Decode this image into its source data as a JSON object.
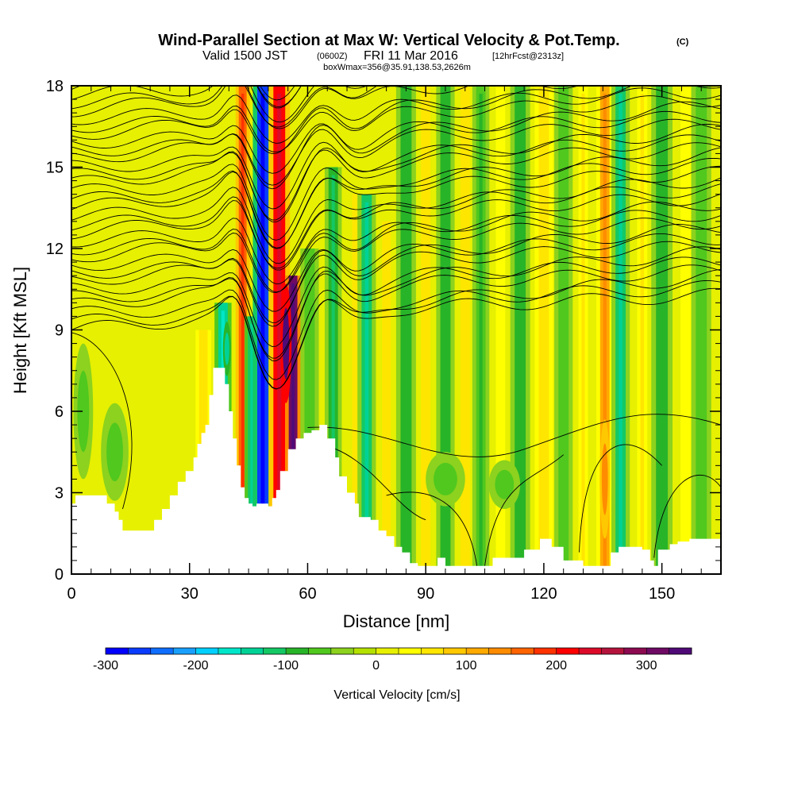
{
  "header": {
    "title": "Wind-Parallel Section at Max W: Vertical Velocity & Pot.Temp.",
    "title_mark": "(C)",
    "valid_main": "Valid 1500 JST",
    "valid_utc": "(0600Z)",
    "valid_date": "FRI 11 Mar 2016",
    "valid_fcst": "[12hrFcst@2313z]",
    "box_info": "boxWmax=356@35.91,138.53,2626m"
  },
  "chart_data": {
    "type": "heatmap",
    "xlabel": "Distance [nm]",
    "ylabel": "Height [Kft MSL]",
    "xlim": [
      0,
      165
    ],
    "ylim": [
      0,
      18
    ],
    "x_ticks": [
      "0",
      "30",
      "60",
      "90",
      "120",
      "150"
    ],
    "y_ticks": [
      "0",
      "3",
      "6",
      "9",
      "12",
      "15",
      "18"
    ],
    "colorbar": {
      "label": "Vertical Velocity [cm/s]",
      "range": [
        -300,
        350
      ],
      "step": 25,
      "tick_labels": [
        "-300",
        "-200",
        "-100",
        "0",
        "100",
        "200",
        "300"
      ],
      "tick_values": [
        -300,
        -200,
        -100,
        0,
        100,
        200,
        300
      ],
      "colors": [
        "#0000ff",
        "#0a3cff",
        "#0f6eff",
        "#19a0ff",
        "#00d0ff",
        "#00e6c8",
        "#00d296",
        "#14c864",
        "#28b428",
        "#50c81e",
        "#8cd21e",
        "#b4e100",
        "#e6f000",
        "#ffff00",
        "#ffe600",
        "#ffc800",
        "#ffaa00",
        "#ff8c00",
        "#ff6400",
        "#ff3200",
        "#ff0000",
        "#dc0a28",
        "#b4143c",
        "#8c0a50",
        "#6e0a64",
        "#500a78"
      ]
    },
    "terrain_kft": [
      [
        0,
        2.6
      ],
      [
        1,
        2.9
      ],
      [
        7,
        2.9
      ],
      [
        9,
        2.6
      ],
      [
        11,
        2.3
      ],
      [
        12,
        2.0
      ],
      [
        13,
        1.6
      ],
      [
        19,
        1.6
      ],
      [
        21,
        2.0
      ],
      [
        23,
        2.4
      ],
      [
        25,
        2.9
      ],
      [
        27,
        3.4
      ],
      [
        29,
        3.8
      ],
      [
        31,
        4.3
      ],
      [
        32,
        4.8
      ],
      [
        33,
        5.2
      ],
      [
        34,
        5.5
      ],
      [
        35,
        6.6
      ],
      [
        36,
        7.6
      ],
      [
        38,
        7.6
      ],
      [
        39,
        7.0
      ],
      [
        40,
        6.0
      ],
      [
        41,
        5.0
      ],
      [
        42,
        4.0
      ],
      [
        43,
        3.2
      ],
      [
        44,
        2.8
      ],
      [
        45,
        2.6
      ],
      [
        46,
        2.5
      ],
      [
        47,
        2.6
      ],
      [
        49,
        2.6
      ],
      [
        50,
        2.5
      ],
      [
        51,
        2.8
      ],
      [
        52,
        3.1
      ],
      [
        53,
        3.8
      ],
      [
        55,
        4.6
      ],
      [
        57,
        5.0
      ],
      [
        59,
        5.2
      ],
      [
        61,
        5.3
      ],
      [
        63,
        5.5
      ],
      [
        65,
        5.0
      ],
      [
        67,
        4.3
      ],
      [
        68,
        3.6
      ],
      [
        70,
        3.0
      ],
      [
        72,
        2.6
      ],
      [
        73,
        2.1
      ],
      [
        76,
        2.0
      ],
      [
        78,
        1.6
      ],
      [
        80,
        1.4
      ],
      [
        82,
        1.0
      ],
      [
        84,
        0.8
      ],
      [
        86,
        0.4
      ],
      [
        88,
        0.3
      ],
      [
        91,
        0.3
      ],
      [
        93,
        0.6
      ],
      [
        95,
        0.3
      ],
      [
        105,
        0.3
      ],
      [
        107,
        0.6
      ],
      [
        115,
        0.9
      ],
      [
        119,
        1.3
      ],
      [
        122,
        1.0
      ],
      [
        125,
        0.5
      ],
      [
        130,
        0.3
      ],
      [
        137,
        0.8
      ],
      [
        139,
        1.0
      ],
      [
        145,
        0.9
      ],
      [
        147,
        0.5
      ],
      [
        148,
        0.3
      ],
      [
        149,
        0.9
      ],
      [
        152,
        1.1
      ],
      [
        154,
        1.2
      ],
      [
        157,
        1.3
      ],
      [
        165,
        1.3
      ]
    ],
    "bands": [
      {
        "x": 33.5,
        "w": 1.1,
        "v": 60,
        "top": 9.0
      },
      {
        "x": 38.5,
        "w": 1.2,
        "v": -140,
        "top": 10.0
      },
      {
        "x": 43.5,
        "w": 1.0,
        "v": 170,
        "top": 18
      },
      {
        "x": 45.8,
        "w": 1.0,
        "v": -120,
        "top": 9.5
      },
      {
        "x": 48.6,
        "w": 1.4,
        "v": -270,
        "top": 18
      },
      {
        "x": 52.8,
        "w": 1.5,
        "v": 210,
        "top": 18
      },
      {
        "x": 56.3,
        "w": 1.1,
        "v": 320,
        "top": 11.0
      },
      {
        "x": 60.5,
        "w": 1.3,
        "v": -60,
        "top": 12
      },
      {
        "x": 66.5,
        "w": 1.2,
        "v": -90,
        "top": 15
      },
      {
        "x": 72.5,
        "w": 1.2,
        "v": 50,
        "top": 14
      },
      {
        "x": 75,
        "w": 1.3,
        "v": -110,
        "top": 14
      },
      {
        "x": 80,
        "w": 1.1,
        "v": 50,
        "top": 13
      },
      {
        "x": 85,
        "w": 1.4,
        "v": -80,
        "top": 18
      },
      {
        "x": 90,
        "w": 1.2,
        "v": 55,
        "top": 18
      },
      {
        "x": 95,
        "w": 1.3,
        "v": -80,
        "top": 18
      },
      {
        "x": 100,
        "w": 1.2,
        "v": 50,
        "top": 18
      },
      {
        "x": 104,
        "w": 1.2,
        "v": -70,
        "top": 18
      },
      {
        "x": 109,
        "w": 1.2,
        "v": 40,
        "top": 18
      },
      {
        "x": 114,
        "w": 1.4,
        "v": -85,
        "top": 18
      },
      {
        "x": 120,
        "w": 1.3,
        "v": 60,
        "top": 18
      },
      {
        "x": 125,
        "w": 1.3,
        "v": -60,
        "top": 18
      },
      {
        "x": 130,
        "w": 1.2,
        "v": 45,
        "top": 18
      },
      {
        "x": 135.5,
        "w": 1.2,
        "v": 110,
        "top": 18
      },
      {
        "x": 139.5,
        "w": 1.3,
        "v": -110,
        "top": 18
      },
      {
        "x": 145,
        "w": 1.3,
        "v": 45,
        "top": 18
      },
      {
        "x": 150,
        "w": 1.5,
        "v": -80,
        "top": 18
      },
      {
        "x": 156,
        "w": 1.3,
        "v": 40,
        "top": 18
      },
      {
        "x": 160,
        "w": 1.4,
        "v": -60,
        "top": 18
      }
    ],
    "blobs": [
      {
        "x": 11,
        "y": 4.5,
        "rx": 3.5,
        "ry": 1.8,
        "v": -70
      },
      {
        "x": 3,
        "y": 6,
        "rx": 2.5,
        "ry": 2.5,
        "v": -55
      },
      {
        "x": 54.5,
        "y": 8.5,
        "rx": 1.4,
        "ry": 2.2,
        "v": 350
      },
      {
        "x": 39.5,
        "y": 8.3,
        "rx": 1.0,
        "ry": 1.0,
        "v": -140
      },
      {
        "x": 95,
        "y": 3.5,
        "rx": 5,
        "ry": 1.0,
        "v": -60
      },
      {
        "x": 110,
        "y": 3.3,
        "rx": 4,
        "ry": 0.9,
        "v": -55
      },
      {
        "x": 135.5,
        "y": 3.5,
        "rx": 1.3,
        "ry": 2.2,
        "v": 140
      }
    ]
  }
}
